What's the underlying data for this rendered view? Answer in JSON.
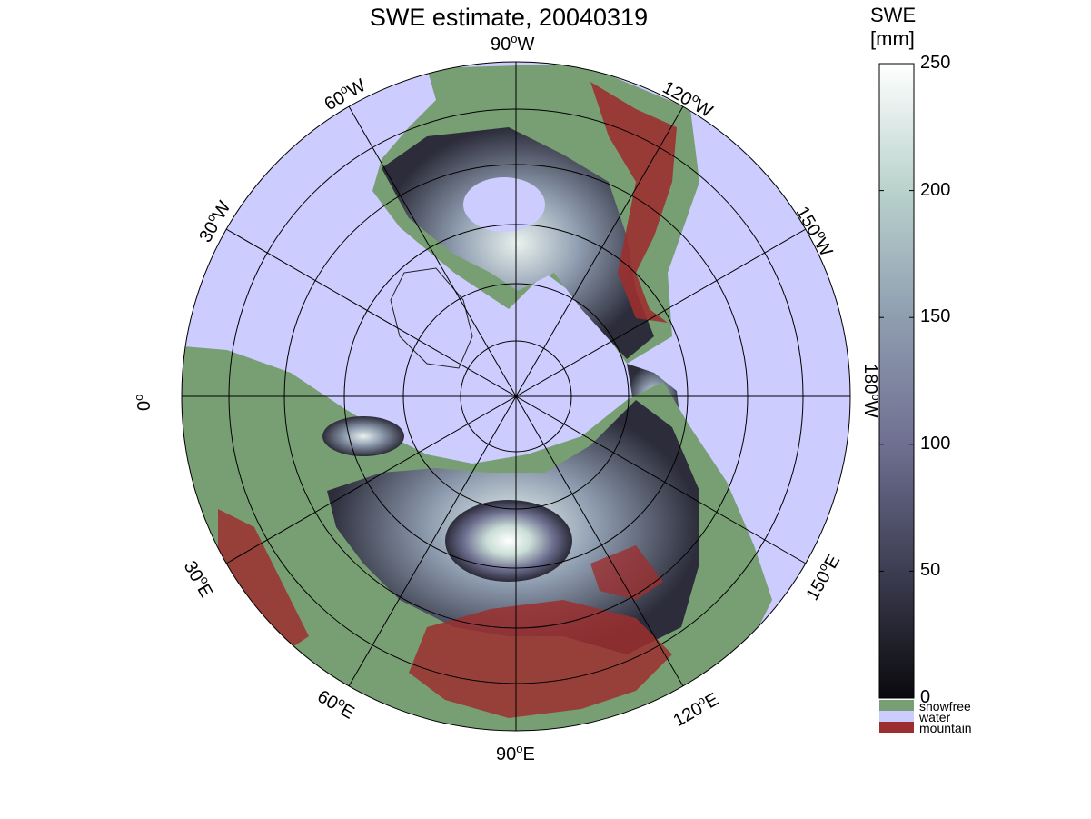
{
  "title": "SWE estimate, 20040319",
  "colorbar": {
    "label_line1": "SWE",
    "label_line2": "[mm]",
    "ticks": [
      0,
      50,
      100,
      150,
      200,
      250
    ],
    "range": [
      0,
      250
    ],
    "gradient_colors": [
      "#0a0a0d",
      "#3d3d52",
      "#6f7091",
      "#8f9db0",
      "#b9d2cc",
      "#ffffff"
    ]
  },
  "legend": [
    {
      "label": "snowfree",
      "color": "#789f73"
    },
    {
      "label": "water",
      "color": "#ccccff"
    },
    {
      "label": "mountain",
      "color": "#9b2f2f"
    }
  ],
  "longitude_labels": [
    {
      "deg": "90",
      "dir": "W"
    },
    {
      "deg": "120",
      "dir": "W"
    },
    {
      "deg": "150",
      "dir": "W"
    },
    {
      "deg": "180",
      "dir": "W"
    },
    {
      "deg": "150",
      "dir": "E"
    },
    {
      "deg": "120",
      "dir": "E"
    },
    {
      "deg": "90",
      "dir": "E"
    },
    {
      "deg": "60",
      "dir": "E"
    },
    {
      "deg": "30",
      "dir": "E"
    },
    {
      "deg": "0",
      "dir": ""
    },
    {
      "deg": "30",
      "dir": "W"
    },
    {
      "deg": "60",
      "dir": "W"
    }
  ],
  "projection": "north polar stereographic",
  "grid": true
}
